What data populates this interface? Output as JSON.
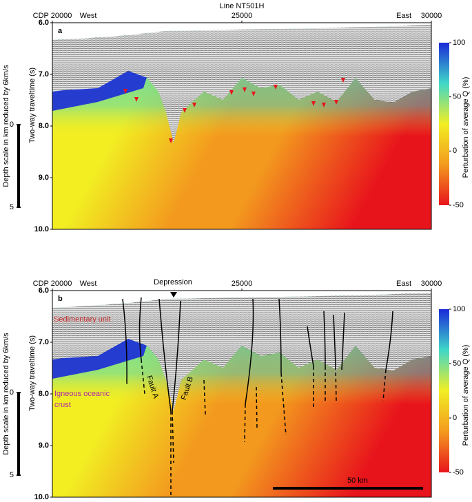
{
  "chart_data": [
    {
      "type": "seismic",
      "title": "Line NT501H",
      "panel": "a",
      "xlim": [
        20000,
        30000
      ],
      "xticks": [
        {
          "value": 20000,
          "label": "CDP 20000"
        },
        25000,
        30000
      ],
      "ylim": [
        6,
        10
      ],
      "yticks": [
        {
          "value": 6,
          "label": "6.0"
        },
        {
          "value": 7,
          "label": "7.0"
        },
        {
          "value": 8,
          "label": "8.0"
        },
        {
          "value": 9,
          "label": "9.0"
        },
        {
          "value": 10,
          "label": "10.0"
        }
      ],
      "ylabel": "Two-way traveltime (s)",
      "y2lim": [
        -6.17,
        6.33
      ],
      "y2ticks": [
        0,
        5
      ],
      "y2label": "Depth scale in km reduced by 6km/s",
      "clim": [
        -50,
        100
      ],
      "cticks": [
        -50,
        0,
        50,
        100
      ],
      "clabel": "Perturbation of average Q (%)",
      "colormap": [
        "#e8141c",
        "#f39a1e",
        "#f2ee22",
        "#3fd8c8",
        "#1a2ad8"
      ],
      "annotations": [
        "West",
        "East"
      ]
    },
    {
      "type": "seismic",
      "panel": "b",
      "xlim": [
        20000,
        30000
      ],
      "xticks": [
        {
          "value": 20000,
          "label": "CDP 20000"
        },
        25000,
        30000
      ],
      "ylim": [
        6,
        10
      ],
      "yticks": [
        {
          "value": 6,
          "label": "6.0"
        },
        {
          "value": 7,
          "label": "7.0"
        },
        {
          "value": 8,
          "label": "8.0"
        },
        {
          "value": 9,
          "label": "9.0"
        },
        {
          "value": 10,
          "label": "10.0"
        }
      ],
      "ylabel": "Two-way traveltime (s)",
      "y2lim": [
        -6.17,
        6.33
      ],
      "y2ticks": [
        0,
        5
      ],
      "y2label": "Depth scale in km reduced by 6km/s",
      "clim": [
        -50,
        100
      ],
      "cticks": [
        -50,
        0,
        50,
        100
      ],
      "clabel": "Perturbation of average Q (%)",
      "colormap": [
        "#e8141c",
        "#f39a1e",
        "#f2ee22",
        "#3fd8c8",
        "#1a2ad8"
      ],
      "annotations": [
        "West",
        "East",
        "Depression",
        "Sedimentary unit",
        "Igneous oceanic",
        "crust",
        "Fault A",
        "Fault B",
        "50 km"
      ]
    }
  ]
}
